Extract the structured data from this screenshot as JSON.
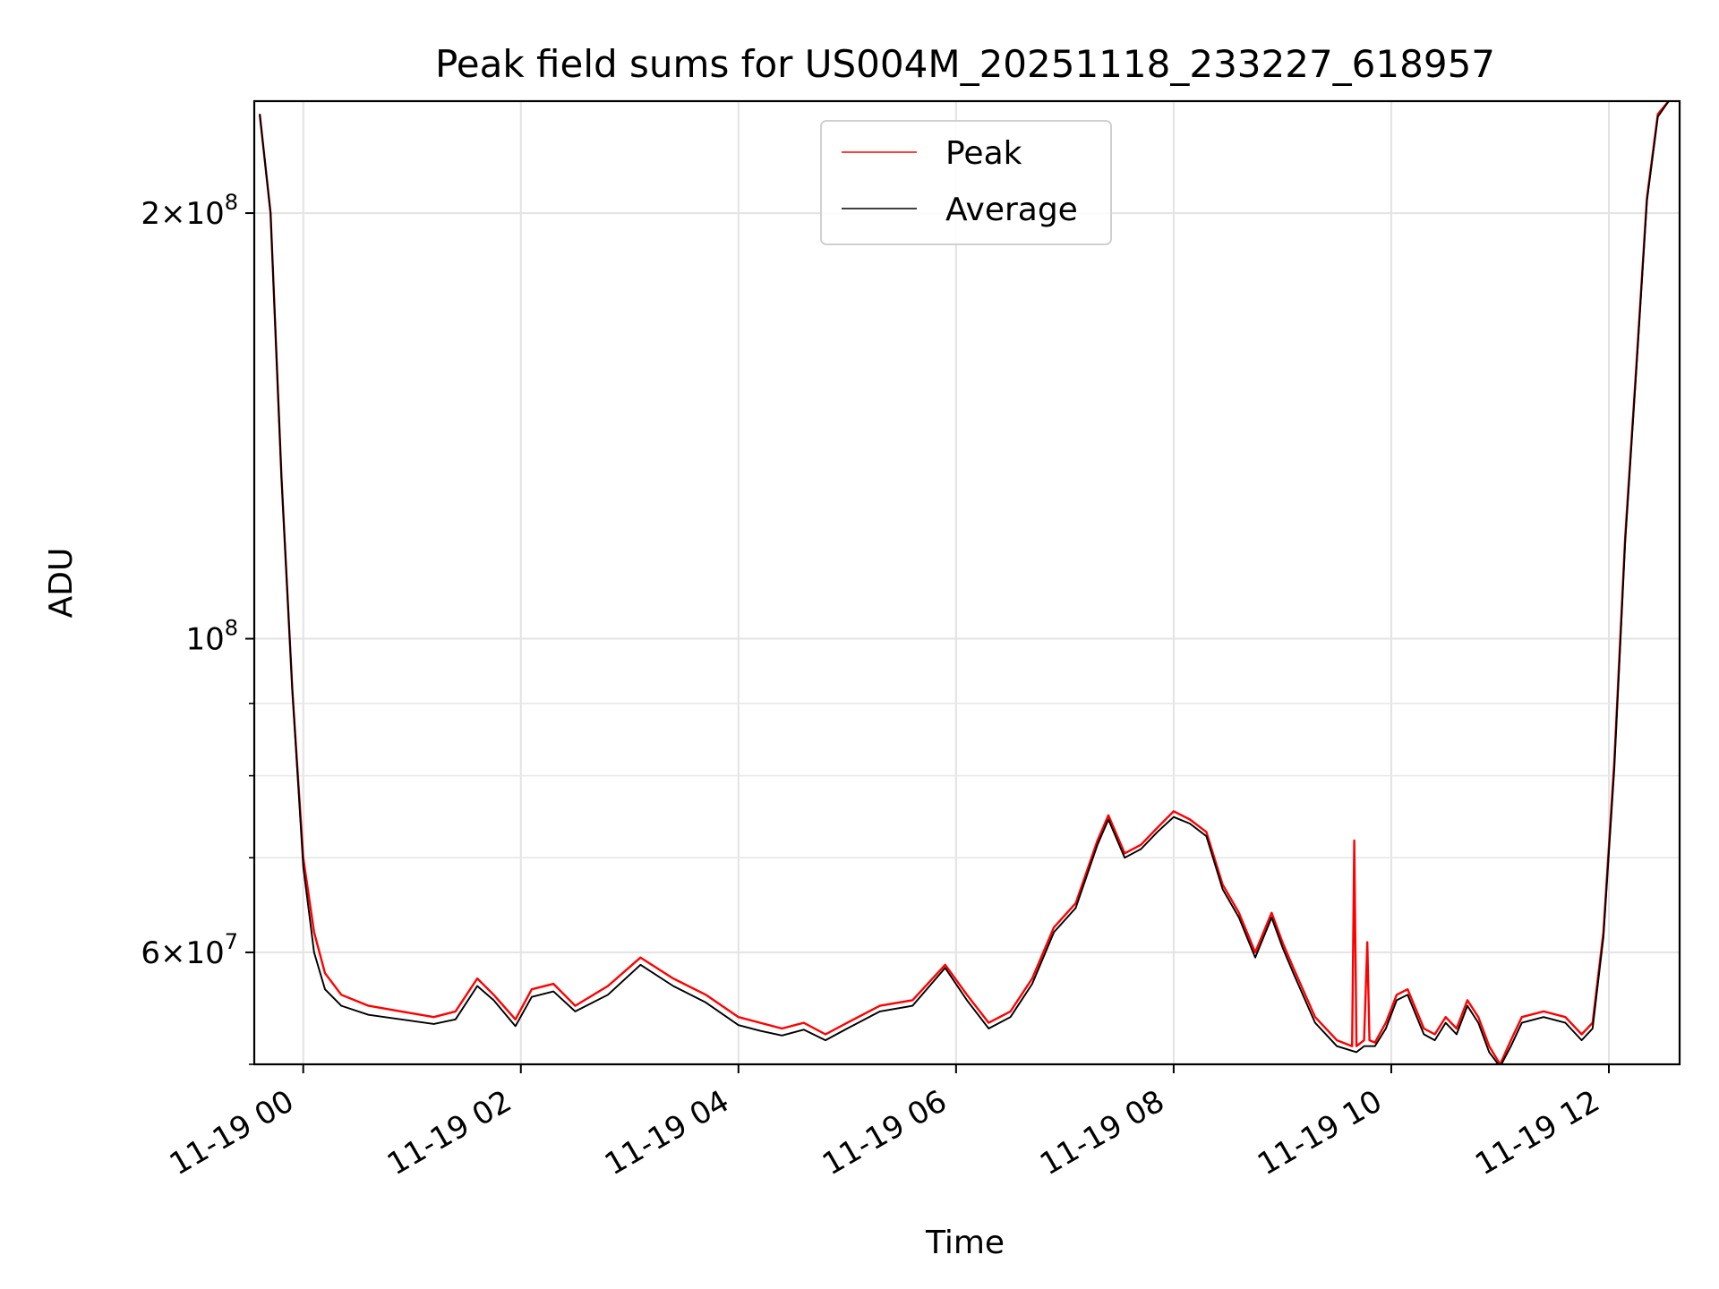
{
  "chart_data": {
    "type": "line",
    "title": "Peak field sums for US004M_20251118_233227_618957",
    "xlabel": "Time",
    "ylabel": "ADU",
    "y_scale": "log",
    "ylim": [
      50000000,
      240000000
    ],
    "xlim_hours": [
      -0.45,
      12.65
    ],
    "grid": true,
    "legend_position": "top-center",
    "x_ticks": [
      {
        "hour": 0,
        "label": "11-19 00"
      },
      {
        "hour": 2,
        "label": "11-19 02"
      },
      {
        "hour": 4,
        "label": "11-19 04"
      },
      {
        "hour": 6,
        "label": "11-19 06"
      },
      {
        "hour": 8,
        "label": "11-19 08"
      },
      {
        "hour": 10,
        "label": "11-19 10"
      },
      {
        "hour": 12,
        "label": "11-19 12"
      }
    ],
    "y_ticks": [
      {
        "value": 200000000,
        "label_mantissa": "2",
        "label_exponent": "8"
      },
      {
        "value": 100000000,
        "label_mantissa": "",
        "label_exponent": "8"
      },
      {
        "value": 60000000,
        "label_mantissa": "6",
        "label_exponent": "7"
      }
    ],
    "y_minor_ticks": [
      50000000,
      70000000,
      80000000,
      90000000
    ],
    "series": [
      {
        "name": "Peak",
        "color": "#ff0000",
        "x_hours": [
          -0.4,
          -0.3,
          -0.2,
          -0.1,
          0.0,
          0.1,
          0.2,
          0.35,
          0.6,
          0.9,
          1.2,
          1.4,
          1.6,
          1.75,
          1.95,
          2.1,
          2.3,
          2.5,
          2.8,
          3.1,
          3.4,
          3.7,
          4.0,
          4.2,
          4.4,
          4.6,
          4.8,
          5.0,
          5.3,
          5.6,
          5.9,
          6.1,
          6.3,
          6.5,
          6.7,
          6.9,
          7.1,
          7.3,
          7.4,
          7.55,
          7.7,
          7.85,
          8.0,
          8.15,
          8.3,
          8.45,
          8.6,
          8.75,
          8.9,
          9.0,
          9.1,
          9.3,
          9.5,
          9.64,
          9.66,
          9.68,
          9.75,
          9.78,
          9.8,
          9.85,
          9.95,
          10.05,
          10.15,
          10.3,
          10.4,
          10.5,
          10.6,
          10.7,
          10.8,
          10.9,
          11.0,
          11.1,
          11.2,
          11.4,
          11.6,
          11.75,
          11.85,
          11.95,
          12.05,
          12.15,
          12.25,
          12.35,
          12.45,
          12.55
        ],
        "values": [
          235000000,
          200000000,
          130000000,
          92000000,
          70000000,
          62000000,
          58000000,
          56000000,
          55000000,
          54500000,
          54000000,
          54500000,
          57500000,
          56000000,
          53800000,
          56500000,
          57000000,
          55000000,
          56800000,
          59500000,
          57500000,
          56000000,
          54000000,
          53500000,
          53000000,
          53500000,
          52500000,
          53500000,
          55000000,
          55500000,
          58800000,
          56000000,
          53500000,
          54500000,
          57500000,
          62500000,
          65000000,
          72000000,
          75000000,
          70500000,
          71500000,
          73500000,
          75500000,
          74500000,
          73000000,
          67000000,
          64000000,
          60000000,
          64000000,
          61000000,
          58500000,
          54000000,
          52000000,
          51500000,
          72000000,
          51500000,
          52000000,
          61000000,
          52000000,
          51800000,
          53500000,
          56000000,
          56500000,
          53000000,
          52500000,
          54000000,
          53000000,
          55500000,
          54000000,
          51500000,
          50000000,
          52000000,
          54000000,
          54500000,
          54000000,
          52500000,
          53500000,
          62000000,
          82000000,
          118000000,
          155000000,
          205000000,
          235000000,
          240000000
        ],
        "stroke_width_hint": 1.5
      },
      {
        "name": "Average",
        "color": "#000000",
        "x_hours": [
          -0.4,
          -0.3,
          -0.2,
          -0.1,
          0.0,
          0.1,
          0.2,
          0.35,
          0.6,
          0.9,
          1.2,
          1.4,
          1.6,
          1.75,
          1.95,
          2.1,
          2.3,
          2.5,
          2.8,
          3.1,
          3.4,
          3.7,
          4.0,
          4.2,
          4.4,
          4.6,
          4.8,
          5.0,
          5.3,
          5.6,
          5.9,
          6.1,
          6.3,
          6.5,
          6.7,
          6.9,
          7.1,
          7.3,
          7.4,
          7.55,
          7.7,
          7.85,
          8.0,
          8.15,
          8.3,
          8.45,
          8.6,
          8.75,
          8.9,
          9.0,
          9.1,
          9.3,
          9.5,
          9.68,
          9.75,
          9.85,
          9.95,
          10.05,
          10.15,
          10.3,
          10.4,
          10.5,
          10.6,
          10.7,
          10.8,
          10.9,
          11.0,
          11.1,
          11.2,
          11.4,
          11.6,
          11.75,
          11.85,
          11.95,
          12.05,
          12.15,
          12.25,
          12.35,
          12.45,
          12.55
        ],
        "values": [
          235000000,
          200000000,
          130000000,
          92000000,
          69000000,
          60000000,
          56500000,
          55000000,
          54200000,
          53800000,
          53400000,
          53800000,
          56800000,
          55500000,
          53200000,
          55800000,
          56300000,
          54500000,
          56000000,
          58800000,
          56800000,
          55300000,
          53300000,
          52800000,
          52400000,
          52900000,
          52000000,
          53000000,
          54500000,
          55000000,
          58500000,
          55500000,
          53000000,
          54000000,
          57000000,
          62000000,
          64500000,
          71500000,
          74500000,
          70000000,
          71000000,
          73000000,
          74800000,
          74000000,
          72500000,
          66500000,
          63500000,
          59500000,
          63500000,
          60500000,
          58000000,
          53500000,
          51500000,
          51000000,
          51500000,
          51500000,
          53000000,
          55500000,
          56000000,
          52500000,
          52000000,
          53500000,
          52500000,
          55000000,
          53500000,
          51000000,
          49800000,
          51500000,
          53500000,
          54000000,
          53500000,
          52000000,
          53000000,
          61500000,
          81000000,
          117000000,
          154000000,
          204000000,
          234000000,
          240000000
        ],
        "stroke_width_hint": 1.2
      }
    ]
  }
}
